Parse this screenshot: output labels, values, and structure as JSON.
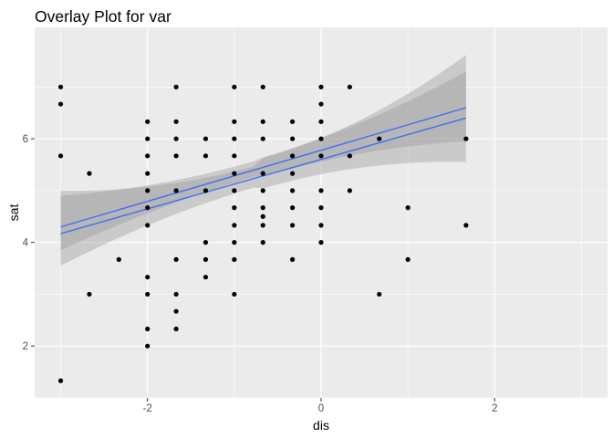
{
  "chart_data": {
    "type": "scatter",
    "title": "Overlay Plot for var",
    "xlabel": "dis",
    "ylabel": "sat",
    "xlim": [
      -3.3,
      3.3
    ],
    "ylim": [
      1.0,
      8.15
    ],
    "x_ticks": [
      -2,
      0,
      2
    ],
    "y_ticks": [
      2,
      4,
      6
    ],
    "x_tick_labels": [
      "-2",
      "0",
      "2"
    ],
    "y_tick_labels": [
      "2",
      "4",
      "6"
    ],
    "grid": true,
    "legend": "none",
    "colors": {
      "panel_background": "#ebebeb",
      "grid_major": "#ffffff",
      "points": "#000000",
      "fit_line": "#3366ff",
      "confidence_band": "#999999"
    },
    "points": [
      {
        "x": -3.0,
        "y": 7.0
      },
      {
        "x": -3.0,
        "y": 6.67
      },
      {
        "x": -3.0,
        "y": 5.67
      },
      {
        "x": -3.0,
        "y": 1.33
      },
      {
        "x": -2.67,
        "y": 5.33
      },
      {
        "x": -2.67,
        "y": 3.0
      },
      {
        "x": -2.33,
        "y": 3.67
      },
      {
        "x": -2.0,
        "y": 6.33
      },
      {
        "x": -2.0,
        "y": 6.0
      },
      {
        "x": -2.0,
        "y": 5.67
      },
      {
        "x": -2.0,
        "y": 5.33
      },
      {
        "x": -2.0,
        "y": 5.0
      },
      {
        "x": -2.0,
        "y": 4.67
      },
      {
        "x": -2.0,
        "y": 4.33
      },
      {
        "x": -2.0,
        "y": 3.33
      },
      {
        "x": -2.0,
        "y": 3.0
      },
      {
        "x": -2.0,
        "y": 2.33
      },
      {
        "x": -2.0,
        "y": 2.0
      },
      {
        "x": -1.67,
        "y": 7.0
      },
      {
        "x": -1.67,
        "y": 6.33
      },
      {
        "x": -1.67,
        "y": 6.0
      },
      {
        "x": -1.67,
        "y": 5.67
      },
      {
        "x": -1.67,
        "y": 5.0
      },
      {
        "x": -1.67,
        "y": 3.67
      },
      {
        "x": -1.67,
        "y": 3.0
      },
      {
        "x": -1.67,
        "y": 2.67
      },
      {
        "x": -1.67,
        "y": 2.33
      },
      {
        "x": -1.33,
        "y": 6.0
      },
      {
        "x": -1.33,
        "y": 5.67
      },
      {
        "x": -1.33,
        "y": 5.0
      },
      {
        "x": -1.33,
        "y": 4.0
      },
      {
        "x": -1.33,
        "y": 3.67
      },
      {
        "x": -1.33,
        "y": 3.33
      },
      {
        "x": -1.0,
        "y": 7.0
      },
      {
        "x": -1.0,
        "y": 6.33
      },
      {
        "x": -1.0,
        "y": 6.0
      },
      {
        "x": -1.0,
        "y": 5.67
      },
      {
        "x": -1.0,
        "y": 5.33
      },
      {
        "x": -1.0,
        "y": 5.0
      },
      {
        "x": -1.0,
        "y": 4.67
      },
      {
        "x": -1.0,
        "y": 4.33
      },
      {
        "x": -1.0,
        "y": 4.0
      },
      {
        "x": -1.0,
        "y": 3.67
      },
      {
        "x": -1.0,
        "y": 3.0
      },
      {
        "x": -0.67,
        "y": 7.0
      },
      {
        "x": -0.67,
        "y": 6.33
      },
      {
        "x": -0.67,
        "y": 6.0
      },
      {
        "x": -0.67,
        "y": 5.33
      },
      {
        "x": -0.67,
        "y": 5.0
      },
      {
        "x": -0.67,
        "y": 4.67
      },
      {
        "x": -0.67,
        "y": 4.5
      },
      {
        "x": -0.67,
        "y": 4.33
      },
      {
        "x": -0.67,
        "y": 4.0
      },
      {
        "x": -0.33,
        "y": 6.33
      },
      {
        "x": -0.33,
        "y": 6.0
      },
      {
        "x": -0.33,
        "y": 5.67
      },
      {
        "x": -0.33,
        "y": 5.33
      },
      {
        "x": -0.33,
        "y": 5.0
      },
      {
        "x": -0.33,
        "y": 4.67
      },
      {
        "x": -0.33,
        "y": 4.33
      },
      {
        "x": -0.33,
        "y": 3.67
      },
      {
        "x": 0.0,
        "y": 7.0
      },
      {
        "x": 0.0,
        "y": 6.67
      },
      {
        "x": 0.0,
        "y": 6.33
      },
      {
        "x": 0.0,
        "y": 6.0
      },
      {
        "x": 0.0,
        "y": 5.67
      },
      {
        "x": 0.0,
        "y": 5.0
      },
      {
        "x": 0.0,
        "y": 4.67
      },
      {
        "x": 0.0,
        "y": 4.33
      },
      {
        "x": 0.0,
        "y": 4.0
      },
      {
        "x": 0.33,
        "y": 7.0
      },
      {
        "x": 0.33,
        "y": 5.67
      },
      {
        "x": 0.33,
        "y": 5.0
      },
      {
        "x": 0.67,
        "y": 6.0
      },
      {
        "x": 0.67,
        "y": 3.0
      },
      {
        "x": 1.0,
        "y": 4.67
      },
      {
        "x": 1.0,
        "y": 3.67
      },
      {
        "x": 1.67,
        "y": 6.0
      },
      {
        "x": 1.67,
        "y": 4.33
      }
    ],
    "series": [
      {
        "x": [
          -3.0,
          1.67
        ],
        "y": [
          4.17,
          6.4
        ],
        "ci_lower": [
          3.55,
          5.55
        ],
        "ci_upper": [
          5.0,
          7.62
        ]
      },
      {
        "x": [
          -3.0,
          1.67
        ],
        "y": [
          4.3,
          6.6
        ],
        "ci_lower": [
          3.85,
          5.95
        ],
        "ci_upper": [
          4.9,
          7.3
        ]
      }
    ]
  }
}
